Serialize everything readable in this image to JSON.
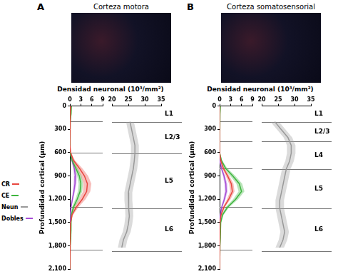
{
  "chart_data": [
    {
      "panel": "A",
      "title": "Corteza motora",
      "type": "line",
      "x_label": "Densidad neuronal (10³/mm²)",
      "y_label": "Profundidad cortical (µm)",
      "xlim": [
        0,
        9
      ],
      "xticks": [
        0,
        3,
        6,
        9
      ],
      "x2lim": [
        20,
        35
      ],
      "x2ticks": [
        20,
        25,
        30,
        35
      ],
      "ylim": [
        0,
        2100
      ],
      "yticks": [
        0,
        300,
        600,
        900,
        1200,
        1500,
        1800,
        2100
      ],
      "grid": false,
      "legend": "left",
      "depth": [
        0,
        100,
        200,
        300,
        400,
        500,
        600,
        700,
        800,
        900,
        1000,
        1100,
        1200,
        1300,
        1400,
        1500,
        1600,
        1700,
        1800,
        1900,
        2000,
        2100
      ],
      "series": [
        {
          "name": "CR",
          "color": "#e8473f",
          "values": [
            0.2,
            0.1,
            0,
            0,
            0,
            0,
            0.2,
            1.0,
            2.6,
            4.0,
            4.8,
            4.6,
            3.4,
            1.8,
            0.6,
            0.2,
            0.1,
            0,
            0,
            0,
            0,
            0
          ],
          "error": [
            0.1,
            0.1,
            0,
            0,
            0,
            0,
            0.1,
            0.4,
            0.8,
            1.0,
            1.1,
            1.0,
            0.9,
            0.6,
            0.3,
            0.1,
            0.1,
            0,
            0,
            0,
            0,
            0
          ]
        },
        {
          "name": "CE",
          "color": "#3db53d",
          "values": [
            0.4,
            0.3,
            0.1,
            0,
            0,
            0,
            0.1,
            0.6,
            1.6,
            2.6,
            3.0,
            2.8,
            2.0,
            1.0,
            0.4,
            0.3,
            0.3,
            0.2,
            0.1,
            0,
            0,
            0
          ],
          "error": [
            0.2,
            0.2,
            0.1,
            0,
            0,
            0,
            0.1,
            0.3,
            0.5,
            0.6,
            0.6,
            0.6,
            0.5,
            0.4,
            0.2,
            0.2,
            0.2,
            0.1,
            0.1,
            0,
            0,
            0
          ]
        },
        {
          "name": "Neun",
          "color": "#999999",
          "axis": "x2",
          "values": [
            null,
            null,
            25.5,
            26,
            26.5,
            27,
            27,
            26.8,
            26.5,
            26,
            25.5,
            25,
            25,
            25.2,
            25.3,
            25,
            24.5,
            23.5,
            23,
            null,
            null,
            null
          ],
          "error": [
            null,
            null,
            1.2,
            1.2,
            1.2,
            1.2,
            1.2,
            1.2,
            1.2,
            1.2,
            1.2,
            1.2,
            1.2,
            1.2,
            1.2,
            1.2,
            1.2,
            1.2,
            1.2,
            null,
            null,
            null
          ]
        },
        {
          "name": "Dobles",
          "color": "#a64dd6",
          "values": [
            0,
            0,
            0,
            0,
            0,
            0,
            0.1,
            0.6,
            1.2,
            1.5,
            1.4,
            1.1,
            0.7,
            0.3,
            0.1,
            0,
            0,
            0,
            0,
            0,
            0,
            0
          ],
          "error": [
            0,
            0,
            0,
            0,
            0,
            0,
            0.05,
            0.2,
            0.3,
            0.4,
            0.4,
            0.3,
            0.2,
            0.1,
            0.05,
            0,
            0,
            0,
            0,
            0,
            0,
            0
          ]
        }
      ],
      "layers": [
        {
          "label": "L1",
          "bottom": 200
        },
        {
          "label": "L2/3",
          "bottom": 600
        },
        {
          "label": "L5",
          "bottom": 1300
        },
        {
          "label": "L6",
          "bottom": 1850
        }
      ]
    },
    {
      "panel": "B",
      "title": "Corteza somatosensorial",
      "type": "line",
      "x_label": "Densidad neuronal (10³/mm²)",
      "y_label": "Profundidad cortical (µm)",
      "xlim": [
        0,
        9
      ],
      "xticks": [
        0,
        3,
        6,
        9
      ],
      "x2lim": [
        20,
        35
      ],
      "x2ticks": [
        20,
        25,
        30,
        35
      ],
      "ylim": [
        0,
        2100
      ],
      "yticks": [
        0,
        300,
        600,
        900,
        1200,
        1500,
        1800,
        2100
      ],
      "grid": false,
      "depth": [
        0,
        100,
        200,
        300,
        400,
        500,
        600,
        700,
        800,
        900,
        1000,
        1100,
        1200,
        1300,
        1400,
        1500,
        1600,
        1700,
        1800,
        1900,
        2000,
        2100
      ],
      "series": [
        {
          "color": "#e8473f",
          "values": [
            0,
            0,
            0,
            0,
            0,
            0,
            0,
            0.3,
            1.0,
            2.2,
            3.2,
            3.5,
            2.5,
            1.2,
            0.4,
            0.1,
            0,
            0,
            0,
            0,
            0,
            0
          ],
          "error": [
            0,
            0,
            0,
            0,
            0,
            0,
            0,
            0.1,
            0.3,
            0.5,
            0.6,
            0.6,
            0.5,
            0.3,
            0.2,
            0.1,
            0,
            0,
            0,
            0,
            0,
            0
          ]
        },
        {
          "color": "#3db53d",
          "values": [
            0.2,
            0.1,
            0,
            0,
            0,
            0,
            0,
            0.5,
            1.6,
            3.6,
            5.4,
            6.0,
            4.4,
            2.2,
            0.8,
            0.3,
            0.2,
            0.2,
            0.1,
            0,
            0,
            0
          ],
          "error": [
            0.1,
            0.1,
            0,
            0,
            0,
            0,
            0,
            0.2,
            0.5,
            0.7,
            0.8,
            0.8,
            0.7,
            0.5,
            0.3,
            0.1,
            0.1,
            0.1,
            0.1,
            0,
            0,
            0
          ]
        },
        {
          "color": "#999999",
          "axis": "x2",
          "values": [
            null,
            null,
            24,
            26,
            28,
            29,
            29,
            28.5,
            27.5,
            27,
            26.5,
            26,
            25.5,
            25.5,
            26,
            26.5,
            27,
            26.5,
            25.5,
            null,
            null,
            null
          ],
          "error": [
            null,
            null,
            1.3,
            1.3,
            1.3,
            1.3,
            1.3,
            1.3,
            1.3,
            1.3,
            1.3,
            1.3,
            1.3,
            1.3,
            1.3,
            1.3,
            1.3,
            1.3,
            1.3,
            null,
            null,
            null
          ]
        },
        {
          "color": "#a64dd6",
          "values": [
            0,
            0,
            0,
            0,
            0,
            0,
            0,
            0.1,
            0.5,
            1.2,
            1.7,
            1.8,
            1.3,
            0.6,
            0.2,
            0,
            0,
            0,
            0,
            0,
            0,
            0
          ],
          "error": [
            0,
            0,
            0,
            0,
            0,
            0,
            0,
            0.05,
            0.2,
            0.3,
            0.4,
            0.4,
            0.3,
            0.2,
            0.1,
            0,
            0,
            0,
            0,
            0,
            0,
            0
          ]
        }
      ],
      "layers": [
        {
          "label": "L1",
          "bottom": 200
        },
        {
          "label": "L2/3",
          "bottom": 450
        },
        {
          "label": "L4",
          "bottom": 800
        },
        {
          "label": "L5",
          "bottom": 1300
        },
        {
          "label": "L6",
          "bottom": 1850
        }
      ]
    }
  ]
}
